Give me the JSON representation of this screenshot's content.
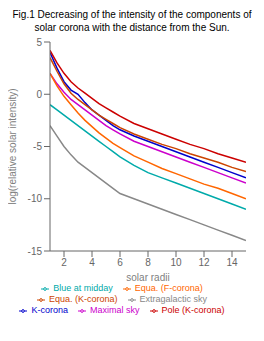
{
  "chart_data": {
    "type": "line",
    "title": "Fig.1 Decreasing of the intensity of the components of solar corona with the distance from the Sun.",
    "x_label": "solar radii",
    "y_label": "log(relative solar intensity)",
    "x": [
      1,
      1.5,
      2,
      2.5,
      3,
      3.5,
      4,
      4.5,
      5,
      5.5,
      6,
      7,
      8,
      9,
      10,
      11,
      12,
      13,
      14,
      15
    ],
    "series": [
      {
        "name": "K-corona",
        "color": "#0000cc",
        "values": [
          4.0,
          2.5,
          1.2,
          0.4,
          0.0,
          -0.8,
          -1.5,
          -2.0,
          -2.5,
          -3.0,
          -3.4,
          -4.0,
          -4.5,
          -5.0,
          -5.5,
          -6.0,
          -6.5,
          -7.0,
          -7.5,
          -8.0
        ]
      },
      {
        "name": "Maximal sky",
        "color": "#cc00cc",
        "values": [
          2.0,
          1.0,
          0.2,
          -0.5,
          -1.0,
          -1.5,
          -2.0,
          -2.5,
          -3.0,
          -3.4,
          -3.8,
          -4.5,
          -5.0,
          -5.5,
          -6.0,
          -6.5,
          -7.0,
          -7.5,
          -8.0,
          -8.5
        ]
      },
      {
        "name": "Blue at midday",
        "color": "#00aaaa",
        "values": [
          -1.0,
          -1.5,
          -2.0,
          -2.5,
          -3.0,
          -3.5,
          -4.0,
          -4.5,
          -5.0,
          -5.5,
          -6.0,
          -6.8,
          -7.5,
          -8.0,
          -8.5,
          -9.0,
          -9.5,
          -10.0,
          -10.5,
          -11.0
        ]
      },
      {
        "name": "Extragalactic sky",
        "color": "#888888",
        "values": [
          -3.0,
          -4.0,
          -5.0,
          -5.8,
          -6.5,
          -7.0,
          -7.5,
          -8.0,
          -8.5,
          -9.0,
          -9.5,
          -10.0,
          -10.5,
          -11.0,
          -11.5,
          -12.0,
          -12.5,
          -13.0,
          -13.5,
          -14.0
        ]
      },
      {
        "name": "Equa. (K-corona)",
        "color": "#cc4400",
        "values": [
          3.5,
          2.2,
          1.0,
          0.1,
          -0.5,
          -1.0,
          -1.5,
          -2.0,
          -2.4,
          -2.8,
          -3.2,
          -3.8,
          -4.3,
          -4.8,
          -5.2,
          -5.7,
          -6.1,
          -6.5,
          -7.0,
          -7.4
        ]
      },
      {
        "name": "Pole (K-corona)",
        "color": "#cc0000",
        "values": [
          4.2,
          3.0,
          2.0,
          1.2,
          0.6,
          0.1,
          -0.4,
          -0.9,
          -1.3,
          -1.7,
          -2.1,
          -2.8,
          -3.3,
          -3.8,
          -4.3,
          -4.8,
          -5.2,
          -5.7,
          -6.1,
          -6.5
        ]
      },
      {
        "name": "Equa. (F-corona)",
        "color": "#ff6600",
        "values": [
          2.0,
          0.8,
          -0.2,
          -1.0,
          -1.8,
          -2.5,
          -3.1,
          -3.7,
          -4.2,
          -4.7,
          -5.1,
          -5.9,
          -6.5,
          -7.1,
          -7.6,
          -8.1,
          -8.6,
          -9.0,
          -9.5,
          -10.0
        ]
      }
    ],
    "xlim": [
      1,
      15
    ],
    "ylim": [
      -15,
      5
    ],
    "xticks": [
      2,
      4,
      6,
      8,
      10,
      12,
      14
    ],
    "yticks": [
      -15,
      -10,
      -5,
      0,
      5
    ],
    "grid": false,
    "legend": "bottom"
  }
}
